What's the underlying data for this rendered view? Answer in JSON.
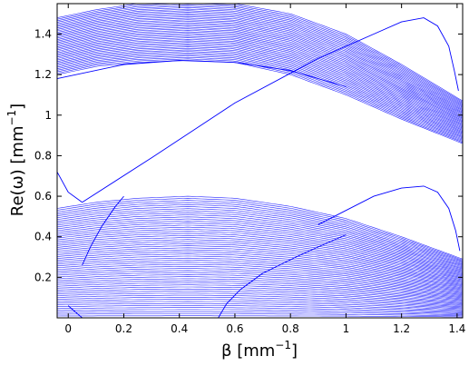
{
  "chart_data": {
    "type": "line",
    "title": "",
    "xlabel": {
      "sym": "β",
      "unit": "[mm",
      "exp": "−1",
      "close": "]"
    },
    "ylabel": {
      "sym": "Re(ω)",
      "unit": "[mm",
      "exp": "−1",
      "close": "]"
    },
    "xlim": [
      -0.04,
      1.42
    ],
    "ylim": [
      0.0,
      1.55
    ],
    "grid": false,
    "legend": "none",
    "color": "#0000ff",
    "xticks": [
      "0",
      "0.2",
      "0.4",
      "0.6",
      "0.8",
      "1",
      "1.2",
      "1.4"
    ],
    "xtick_values": [
      0,
      0.2,
      0.4,
      0.6,
      0.8,
      1.0,
      1.2,
      1.4
    ],
    "yticks": [
      "0.2",
      "0.4",
      "0.6",
      "0.8",
      "1",
      "1.2",
      "1.4"
    ],
    "ytick_values": [
      0.2,
      0.4,
      0.6,
      0.8,
      1.0,
      1.2,
      1.4
    ],
    "upper_band": {
      "curves": 40,
      "top_edge": [
        [
          -0.04,
          1.48
        ],
        [
          0.1,
          1.52
        ],
        [
          0.25,
          1.55
        ],
        [
          0.43,
          1.56
        ],
        [
          0.6,
          1.55
        ],
        [
          0.8,
          1.5
        ],
        [
          1.0,
          1.4
        ],
        [
          1.2,
          1.25
        ],
        [
          1.42,
          1.07
        ]
      ],
      "bottom_edge": [
        [
          -0.04,
          1.2
        ],
        [
          0.1,
          1.24
        ],
        [
          0.25,
          1.26
        ],
        [
          0.43,
          1.27
        ],
        [
          0.6,
          1.26
        ],
        [
          0.8,
          1.2
        ],
        [
          1.0,
          1.1
        ],
        [
          1.2,
          0.98
        ],
        [
          1.42,
          0.86
        ]
      ]
    },
    "lower_band": {
      "curves": 60,
      "top_edge": [
        [
          -0.04,
          0.54
        ],
        [
          0.1,
          0.57
        ],
        [
          0.25,
          0.59
        ],
        [
          0.43,
          0.6
        ],
        [
          0.6,
          0.59
        ],
        [
          0.8,
          0.55
        ],
        [
          1.0,
          0.49
        ],
        [
          1.2,
          0.4
        ],
        [
          1.42,
          0.29
        ]
      ],
      "bottom_edge": [
        [
          -0.04,
          0.0
        ],
        [
          1.42,
          0.0
        ]
      ]
    },
    "series": [
      {
        "points": [
          [
            -0.04,
            1.18
          ],
          [
            0.2,
            1.25
          ],
          [
            0.4,
            1.27
          ],
          [
            0.6,
            1.26
          ],
          [
            0.8,
            1.22
          ],
          [
            1.0,
            1.14
          ]
        ]
      },
      {
        "points": [
          [
            -0.04,
            0.72
          ],
          [
            0.0,
            0.62
          ],
          [
            0.05,
            0.57
          ]
        ]
      },
      {
        "points": [
          [
            0.05,
            0.57
          ],
          [
            0.3,
            0.79
          ],
          [
            0.6,
            1.06
          ],
          [
            0.9,
            1.28
          ],
          [
            1.1,
            1.4
          ],
          [
            1.2,
            1.46
          ],
          [
            1.28,
            1.48
          ],
          [
            1.33,
            1.44
          ],
          [
            1.37,
            1.34
          ],
          [
            1.39,
            1.22
          ],
          [
            1.405,
            1.12
          ]
        ]
      },
      {
        "points": [
          [
            0.9,
            0.46
          ],
          [
            1.0,
            0.53
          ],
          [
            1.1,
            0.6
          ],
          [
            1.2,
            0.64
          ],
          [
            1.28,
            0.65
          ],
          [
            1.33,
            0.62
          ],
          [
            1.37,
            0.54
          ],
          [
            1.395,
            0.43
          ],
          [
            1.41,
            0.33
          ]
        ]
      },
      {
        "points": [
          [
            0.54,
            0.0
          ],
          [
            0.57,
            0.07
          ],
          [
            0.62,
            0.14
          ],
          [
            0.7,
            0.22
          ],
          [
            0.82,
            0.3
          ],
          [
            0.9,
            0.35
          ],
          [
            1.0,
            0.41
          ]
        ]
      },
      {
        "points": [
          [
            0.05,
            0.26
          ],
          [
            0.08,
            0.35
          ],
          [
            0.12,
            0.45
          ],
          [
            0.17,
            0.55
          ],
          [
            0.2,
            0.6
          ]
        ]
      },
      {
        "points": [
          [
            0.0,
            0.06
          ],
          [
            0.05,
            0.0
          ]
        ]
      }
    ]
  }
}
